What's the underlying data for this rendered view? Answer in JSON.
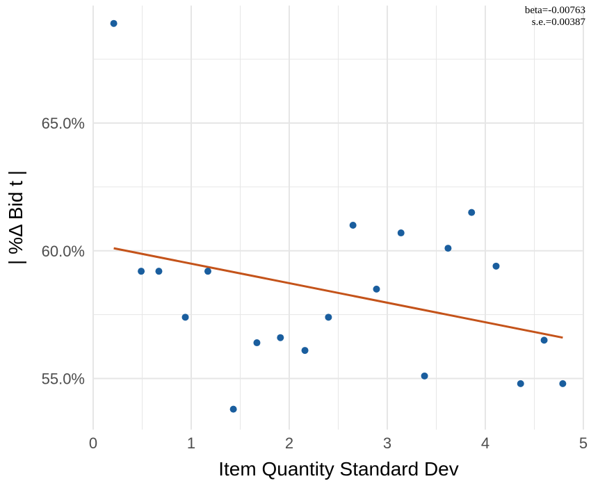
{
  "chart_data": {
    "type": "scatter",
    "xlabel": "Item Quantity Standard Dev",
    "ylabel": "| %Δ Bid t |",
    "xlim": [
      0,
      5
    ],
    "ylim": [
      53.0,
      69.6
    ],
    "x_ticks": [
      0,
      1,
      2,
      3,
      4,
      5
    ],
    "x_tick_labels": [
      "0",
      "1",
      "2",
      "3",
      "4",
      "5"
    ],
    "y_ticks": [
      55.0,
      60.0,
      65.0
    ],
    "y_tick_labels": [
      "55.0%",
      "60.0%",
      "65.0%"
    ],
    "grid": true,
    "annotations": [
      "beta=-0.00763",
      "s.e.=0.00387"
    ],
    "colors": {
      "points": "#1a5e9e",
      "fit_line": "#c4531a",
      "grid": "#e6e6e6"
    },
    "series": [
      {
        "points": [
          {
            "x": 0.21,
            "y": 68.9
          },
          {
            "x": 0.49,
            "y": 59.2
          },
          {
            "x": 0.67,
            "y": 59.2
          },
          {
            "x": 0.94,
            "y": 57.4
          },
          {
            "x": 1.17,
            "y": 59.2
          },
          {
            "x": 1.43,
            "y": 53.8
          },
          {
            "x": 1.67,
            "y": 56.4
          },
          {
            "x": 1.91,
            "y": 56.6
          },
          {
            "x": 2.16,
            "y": 56.1
          },
          {
            "x": 2.4,
            "y": 57.4
          },
          {
            "x": 2.65,
            "y": 61.0
          },
          {
            "x": 2.89,
            "y": 58.5
          },
          {
            "x": 3.14,
            "y": 60.7
          },
          {
            "x": 3.38,
            "y": 55.1
          },
          {
            "x": 3.62,
            "y": 60.1
          },
          {
            "x": 3.86,
            "y": 61.5
          },
          {
            "x": 4.11,
            "y": 59.4
          },
          {
            "x": 4.36,
            "y": 54.8
          },
          {
            "x": 4.6,
            "y": 56.5
          },
          {
            "x": 4.79,
            "y": 54.8
          }
        ]
      }
    ],
    "fit_line": {
      "x": [
        0.21,
        4.79
      ],
      "y": [
        60.1,
        56.6
      ]
    }
  }
}
